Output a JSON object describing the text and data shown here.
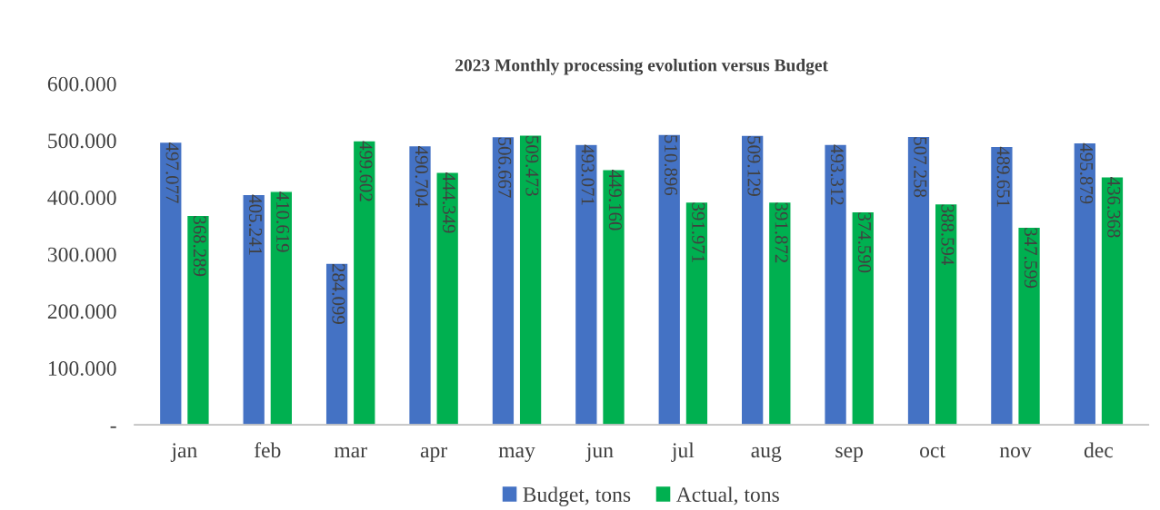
{
  "chart_data": {
    "type": "bar",
    "title": "2023 Monthly processing evolution versus Budget",
    "categories": [
      "jan",
      "feb",
      "mar",
      "apr",
      "may",
      "jun",
      "jul",
      "aug",
      "sep",
      "oct",
      "nov",
      "dec"
    ],
    "series": [
      {
        "name": "Budget, tons",
        "color": "#4472c4",
        "values": [
          497077,
          405241,
          284099,
          490704,
          506667,
          493071,
          510896,
          509129,
          493312,
          507258,
          489651,
          495879
        ],
        "value_labels": [
          "497.077",
          "405.241",
          "284.099",
          "490.704",
          "506.667",
          "493.071",
          "510.896",
          "509.129",
          "493.312",
          "507.258",
          "489.651",
          "495.879"
        ]
      },
      {
        "name": "Actual, tons",
        "color": "#00b050",
        "values": [
          368289,
          410619,
          499602,
          444349,
          509473,
          449160,
          391971,
          391872,
          374590,
          388594,
          347599,
          436368
        ],
        "value_labels": [
          "368.289",
          "410.619",
          "499.602",
          "444.349",
          "509.473",
          "449.160",
          "391.971",
          "391.872",
          "374.590",
          "388.594",
          "347.599",
          "436.368"
        ]
      }
    ],
    "ylim": [
      0,
      600000
    ],
    "yticks": [
      {
        "value": 0,
        "label": "-"
      },
      {
        "value": 100000,
        "label": "100.000"
      },
      {
        "value": 200000,
        "label": "200.000"
      },
      {
        "value": 300000,
        "label": "300.000"
      },
      {
        "value": 400000,
        "label": "400.000"
      },
      {
        "value": 500000,
        "label": "500.000"
      },
      {
        "value": 600000,
        "label": "600.000"
      }
    ],
    "grid": false,
    "legend": "bottom"
  }
}
